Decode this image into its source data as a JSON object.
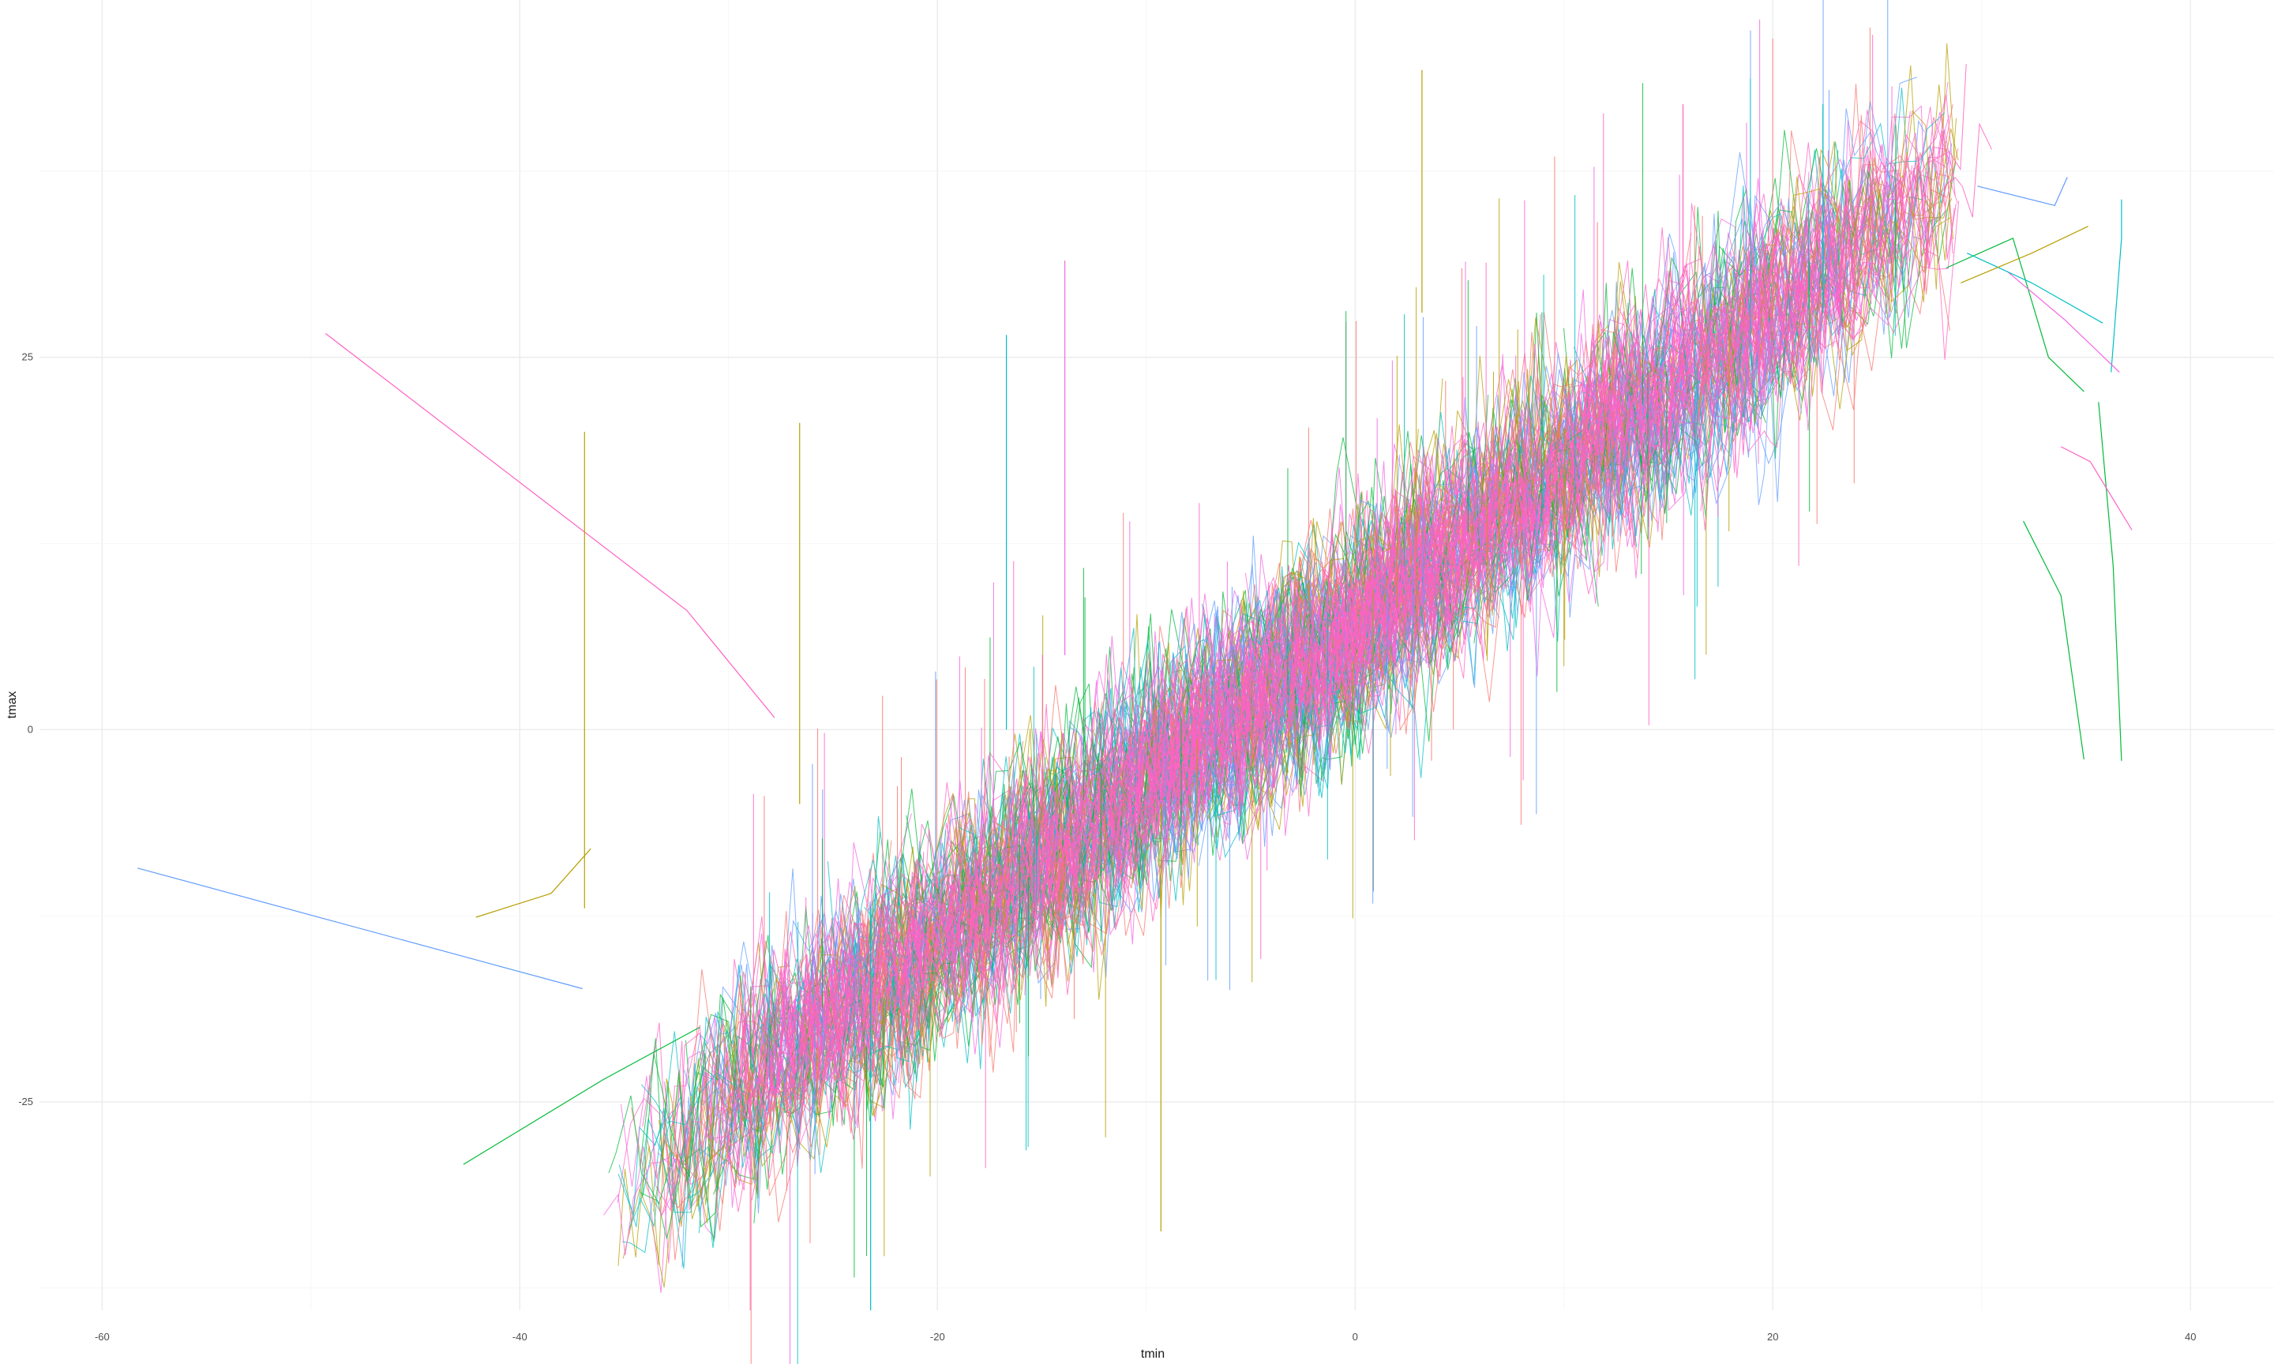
{
  "chart_data": {
    "type": "line",
    "title": "",
    "xlabel": "tmin",
    "ylabel": "tmax",
    "xlim": [
      -63,
      44
    ],
    "ylim": [
      -39,
      49
    ],
    "x_ticks": [
      -60,
      -40,
      -20,
      0,
      20,
      40
    ],
    "y_ticks": [
      -25,
      0,
      25
    ],
    "x_tick_labels": [
      "-60",
      "-40",
      "-20",
      "0",
      "20",
      "40"
    ],
    "y_tick_labels": [
      "-25",
      "0",
      "25"
    ],
    "grid": true,
    "legend": "none",
    "relationship": {
      "slope": 1.05,
      "intercept": 7,
      "band_halfwidth": 5
    },
    "x_main_range": [
      -36,
      27
    ],
    "colors": [
      "#F8766D",
      "#B79F00",
      "#00BA38",
      "#00BFC4",
      "#619CFF",
      "#F564E3",
      "#FF61C3"
    ],
    "series": [
      {
        "color": "#FF61C3",
        "x": [
          -49.3,
          -32.0,
          -27.8
        ],
        "y": [
          26.6,
          8.0,
          0.8
        ]
      },
      {
        "color": "#619CFF",
        "x": [
          -58.3,
          -42.0,
          -37.0
        ],
        "y": [
          -9.3,
          -15.5,
          -17.4
        ]
      },
      {
        "color": "#00BA38",
        "x": [
          -42.7,
          -36.0,
          -31.4
        ],
        "y": [
          -29.2,
          -23.5,
          -20.0
        ]
      },
      {
        "color": "#B79F00",
        "x": [
          -42.1,
          -38.5,
          -36.6
        ],
        "y": [
          -12.6,
          -11.0,
          -8.0
        ]
      },
      {
        "color": "#619CFF",
        "x": [
          29.8,
          33.5,
          34.1
        ],
        "y": [
          36.5,
          35.2,
          37.1
        ]
      },
      {
        "color": "#00BA38",
        "x": [
          28.3,
          31.5,
          33.2,
          34.9
        ],
        "y": [
          31.0,
          33.0,
          25.0,
          22.7
        ]
      },
      {
        "color": "#00BA38",
        "x": [
          32.0,
          33.8,
          34.9
        ],
        "y": [
          14.0,
          9.0,
          -2.0
        ]
      },
      {
        "color": "#00BA38",
        "x": [
          35.6,
          36.3,
          36.7
        ],
        "y": [
          22.0,
          11.0,
          -2.1
        ]
      },
      {
        "color": "#00BFC4",
        "x": [
          36.2,
          36.7,
          36.7
        ],
        "y": [
          24.0,
          33.0,
          35.6
        ]
      },
      {
        "color": "#FF61C3",
        "x": [
          33.8,
          35.2,
          37.2
        ],
        "y": [
          19.0,
          18.0,
          13.4
        ]
      },
      {
        "color": "#F564E3",
        "x": [
          31.2,
          34.0,
          36.6
        ],
        "y": [
          30.8,
          27.5,
          24.0
        ]
      },
      {
        "color": "#00BFC4",
        "x": [
          29.3,
          32.4,
          35.8
        ],
        "y": [
          32.0,
          30.0,
          27.3
        ]
      },
      {
        "color": "#B79F00",
        "x": [
          29.0,
          32.4,
          35.1
        ],
        "y": [
          30.0,
          32.0,
          33.8
        ]
      }
    ],
    "spikes": [
      {
        "x": 3.2,
        "y1": 28.0,
        "y2": 44.3,
        "color": "#B79F00"
      },
      {
        "x": -9.3,
        "y1": -5.0,
        "y2": -33.7,
        "color": "#B79F00"
      },
      {
        "x": -23.2,
        "y1": -12.0,
        "y2": -39.0,
        "color": "#00BFC4"
      },
      {
        "x": -16.7,
        "y1": 0.0,
        "y2": 26.5,
        "color": "#00BFC4"
      },
      {
        "x": -13.9,
        "y1": 5.0,
        "y2": 31.5,
        "color": "#F564E3"
      },
      {
        "x": -26.6,
        "y1": -5.0,
        "y2": 20.6,
        "color": "#B79F00"
      },
      {
        "x": -36.9,
        "y1": -12.0,
        "y2": 20.0,
        "color": "#B79F00"
      },
      {
        "x": 22.4,
        "y1": 28.0,
        "y2": 42.0,
        "color": "#00BFC4"
      },
      {
        "x": 15.7,
        "y1": 22.0,
        "y2": 42.0,
        "color": "#FF61C3"
      }
    ]
  }
}
